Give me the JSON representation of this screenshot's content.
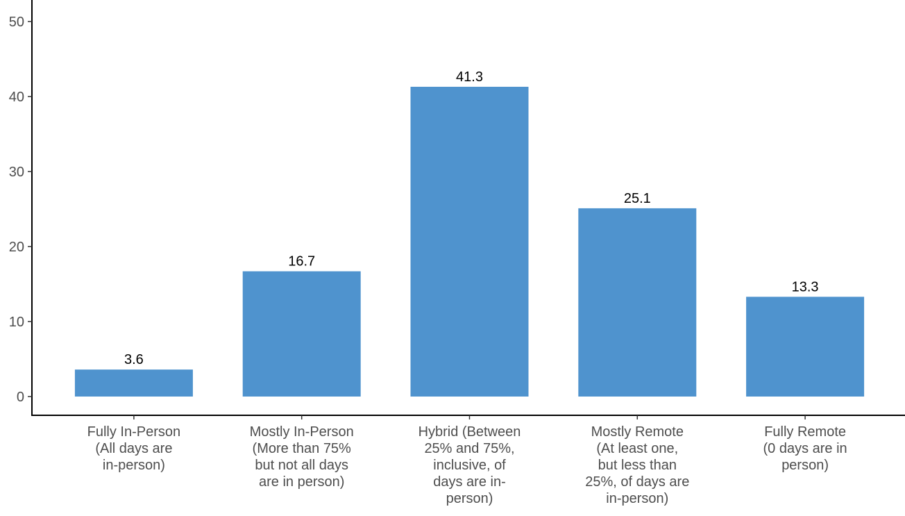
{
  "chart_data": {
    "type": "bar",
    "title": "",
    "xlabel": "",
    "ylabel": "",
    "ylim": [
      0,
      50
    ],
    "yticks": [
      "0",
      "10",
      "20",
      "30",
      "40",
      "50"
    ],
    "categories": [
      [
        "Fully In-Person",
        "(All days are",
        "in-person)"
      ],
      [
        "Mostly In-Person",
        "(More than 75%",
        "but not all days",
        "are in person)"
      ],
      [
        "Hybrid (Between",
        "25% and 75%,",
        "inclusive, of",
        "days are in-",
        "person)"
      ],
      [
        "Mostly Remote",
        "(At least one,",
        "but less than",
        "25%, of days are",
        "in-person)"
      ],
      [
        "Fully Remote",
        "(0 days are in",
        "person)"
      ]
    ],
    "values": [
      3.6,
      16.7,
      41.3,
      25.1,
      13.3
    ],
    "value_labels": [
      "3.6",
      "16.7",
      "41.3",
      "25.1",
      "13.3"
    ],
    "bar_color": "#4f93ce",
    "grid": false,
    "legend": "none"
  }
}
